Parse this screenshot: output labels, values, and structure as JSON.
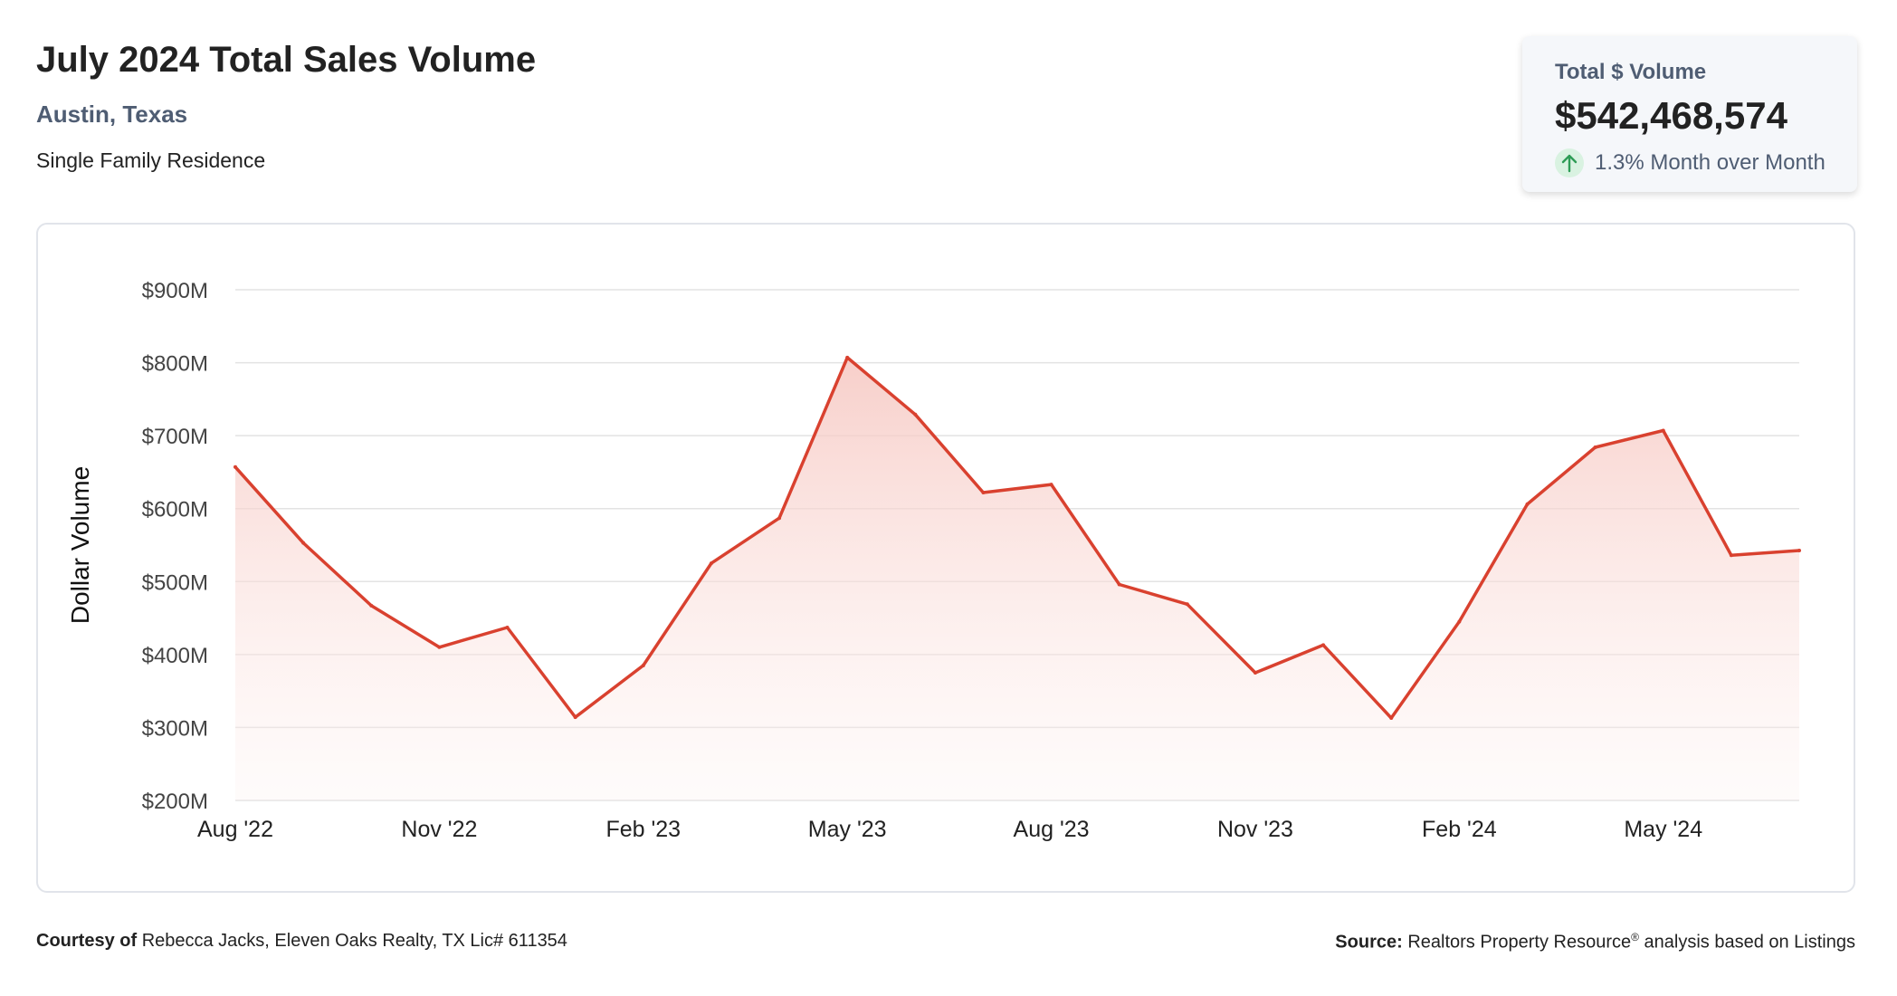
{
  "header": {
    "title": "July 2024 Total Sales Volume",
    "location": "Austin, Texas",
    "property_type": "Single Family Residence"
  },
  "kpi": {
    "label": "Total $ Volume",
    "value": "$542,468,574",
    "change_text": "1.3% Month over Month",
    "direction": "up",
    "arrow_icon": "arrow-up-icon",
    "arrow_color": "#2e9c56",
    "arrow_bg": "#d9f2e1"
  },
  "footer": {
    "courtesy_label": "Courtesy of",
    "courtesy_text": "Rebecca Jacks, Eleven Oaks Realty, TX Lic# 611354",
    "source_label": "Source:",
    "source_text_1": "Realtors Property Resource",
    "source_reg": "®",
    "source_text_2": " analysis based on Listings"
  },
  "colors": {
    "line": "#d9412f",
    "fill_top": "#f6c6c0",
    "grid": "#e3e3e3"
  },
  "chart_data": {
    "type": "area",
    "title": "",
    "ylabel": "Dollar Volume",
    "xlabel": "",
    "ylim": [
      200,
      900
    ],
    "y_unit": "$M",
    "y_ticks": [
      "$200M",
      "$300M",
      "$400M",
      "$500M",
      "$600M",
      "$700M",
      "$800M",
      "$900M"
    ],
    "y_tick_values": [
      200,
      300,
      400,
      500,
      600,
      700,
      800,
      900
    ],
    "x_tick_labels": [
      "Aug '22",
      "Nov '22",
      "Feb '23",
      "May '23",
      "Aug '23",
      "Nov '23",
      "Feb '24",
      "May '24"
    ],
    "x_tick_indices": [
      0,
      3,
      6,
      9,
      12,
      15,
      18,
      21
    ],
    "months": [
      "Aug '22",
      "Sep '22",
      "Oct '22",
      "Nov '22",
      "Dec '22",
      "Jan '23",
      "Feb '23",
      "Mar '23",
      "Apr '23",
      "May '23",
      "Jun '23",
      "Jul '23",
      "Aug '23",
      "Sep '23",
      "Oct '23",
      "Nov '23",
      "Dec '23",
      "Jan '24",
      "Feb '24",
      "Mar '24",
      "Apr '24",
      "May '24",
      "Jun '24",
      "Jul '24"
    ],
    "values": [
      657,
      553,
      467,
      410,
      437,
      314,
      385,
      525,
      587,
      807,
      729,
      622,
      633,
      496,
      469,
      375,
      413,
      313,
      445,
      606,
      684,
      707,
      536,
      542.5
    ],
    "grid": true,
    "legend": "none"
  }
}
